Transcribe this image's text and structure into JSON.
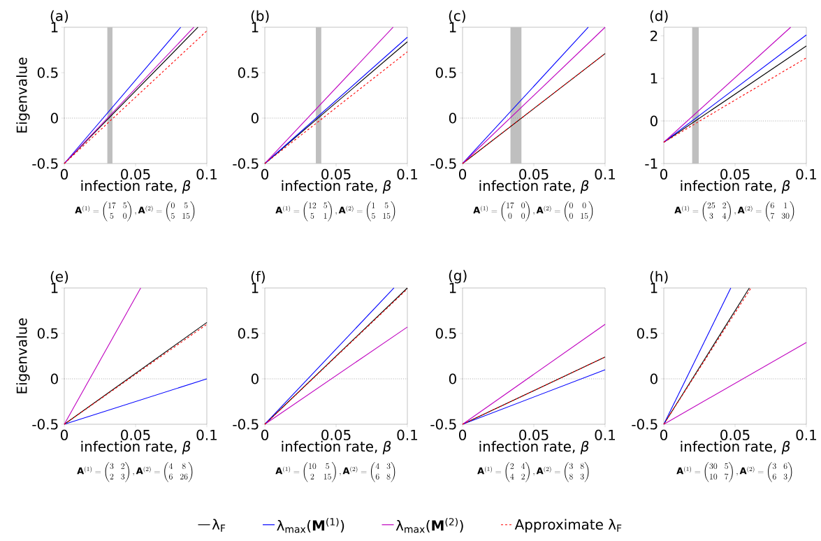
{
  "chart_data": [
    {
      "type": "line",
      "title": "(a)",
      "xlabel": "infection rate, *β*",
      "ylabel": "Eigenvalue",
      "xlim": [
        0,
        0.1
      ],
      "ylim": [
        -0.5,
        1
      ],
      "xticks": [
        0,
        0.05,
        0.1
      ],
      "yticks": [
        -0.5,
        0,
        0.5,
        1
      ],
      "legend": "bottom",
      "series": [
        {
          "name": "λ$_{F}$",
          "color": "#000000",
          "x": [
            0,
            0.0938
          ],
          "values": [
            -0.5,
            1
          ]
        },
        {
          "name": "λ$_{max}$(**M**$^{(1)}$)",
          "color": "#0000ff",
          "x": [
            0,
            0.0817
          ],
          "values": [
            -0.5,
            1
          ]
        },
        {
          "name": "λ$_{max}$(**M**$^{(2)}$)",
          "color": "#bf00bf",
          "x": [
            0,
            0.0909
          ],
          "values": [
            -0.5,
            1
          ]
        },
        {
          "name": "Approximate λ$_{F}$",
          "color": "#ff0000",
          "line_style": "dashed",
          "x": [
            0,
            0.1
          ],
          "values": [
            -0.5,
            0.96
          ]
        }
      ],
      "bands": [
        {
          "axis": "x",
          "from": 0.0302,
          "to": 0.0338,
          "color": "#bfbfbf"
        }
      ],
      "ref_lines": [
        {
          "axis": "y",
          "value": 0,
          "color": "#808080",
          "line_style": "dotted"
        }
      ],
      "annotations": [
        "\\mathbf{A}^{(1)}=\\begin{pmatrix}17 & 5\\\\ 5 & 0\\end{pmatrix}, \\mathbf{A}^{(2)}=\\begin{pmatrix}0 & 5\\\\ 5 & 15\\end{pmatrix}"
      ]
    },
    {
      "type": "line",
      "title": "(b)",
      "xlabel": "infection rate, *β*",
      "xlim": [
        0,
        0.1
      ],
      "ylim": [
        -0.5,
        1
      ],
      "xticks": [
        0,
        0.05,
        0.1
      ],
      "yticks": [
        -0.5,
        0,
        0.5,
        1
      ],
      "series": [
        {
          "color": "#000000",
          "x": [
            0,
            0.1
          ],
          "values": [
            -0.5,
            0.84
          ]
        },
        {
          "color": "#0000ff",
          "x": [
            0,
            0.1
          ],
          "values": [
            -0.5,
            0.89
          ]
        },
        {
          "color": "#bf00bf",
          "x": [
            0,
            0.09
          ],
          "values": [
            -0.5,
            1
          ]
        },
        {
          "color": "#ff0000",
          "line_style": "dashed",
          "x": [
            0,
            0.1
          ],
          "values": [
            -0.5,
            0.73
          ]
        }
      ],
      "bands": [
        {
          "axis": "x",
          "from": 0.0358,
          "to": 0.0396,
          "color": "#bfbfbf"
        }
      ],
      "ref_lines": [
        {
          "axis": "y",
          "value": 0,
          "color": "#808080",
          "line_style": "dotted"
        }
      ],
      "annotations": [
        "\\mathbf{A}^{(1)}=\\begin{pmatrix}12 & 5\\\\ 5 & 1\\end{pmatrix}, \\mathbf{A}^{(2)}=\\begin{pmatrix}1 & 5\\\\ 5 & 15\\end{pmatrix}"
      ]
    },
    {
      "type": "line",
      "title": "(c)",
      "xlabel": "infection rate, *β*",
      "xlim": [
        0,
        0.1
      ],
      "ylim": [
        -0.5,
        1
      ],
      "xticks": [
        0,
        0.05,
        0.1
      ],
      "yticks": [
        -0.5,
        0,
        0.5,
        1
      ],
      "series": [
        {
          "color": "#000000",
          "x": [
            0,
            0.1
          ],
          "values": [
            -0.5,
            0.71
          ]
        },
        {
          "color": "#0000ff",
          "x": [
            0,
            0.0882
          ],
          "values": [
            -0.5,
            1
          ]
        },
        {
          "color": "#bf00bf",
          "x": [
            0,
            0.1
          ],
          "values": [
            -0.5,
            1
          ]
        },
        {
          "color": "#ff0000",
          "line_style": "dashed",
          "x": [
            0,
            0.1
          ],
          "values": [
            -0.5,
            0.71
          ]
        }
      ],
      "bands": [
        {
          "axis": "x",
          "from": 0.0336,
          "to": 0.0413,
          "color": "#bfbfbf"
        }
      ],
      "ref_lines": [
        {
          "axis": "y",
          "value": 0,
          "color": "#808080",
          "line_style": "dotted"
        }
      ],
      "annotations": [
        "\\mathbf{A}^{(1)}=\\begin{pmatrix}17 & 0\\\\ 0 & 0\\end{pmatrix}, \\mathbf{A}^{(2)}=\\begin{pmatrix}0 & 0\\\\ 0 & 15\\end{pmatrix}"
      ]
    },
    {
      "type": "line",
      "title": "(d)",
      "xlabel": "infection rate, *β*",
      "xlim": [
        0,
        0.1
      ],
      "ylim": [
        -1,
        2.2
      ],
      "xticks": [
        0,
        0.05,
        0.1
      ],
      "yticks": [
        -1,
        0,
        1,
        2
      ],
      "series": [
        {
          "color": "#000000",
          "x": [
            0,
            0.1
          ],
          "values": [
            -0.5,
            1.76
          ]
        },
        {
          "color": "#0000ff",
          "x": [
            0,
            0.1
          ],
          "values": [
            -0.5,
            2.02
          ]
        },
        {
          "color": "#bf00bf",
          "x": [
            0,
            0.089
          ],
          "values": [
            -0.5,
            2.2
          ]
        },
        {
          "color": "#ff0000",
          "line_style": "dashed",
          "x": [
            0,
            0.1
          ],
          "values": [
            -0.5,
            1.48
          ]
        }
      ],
      "bands": [
        {
          "axis": "x",
          "from": 0.0199,
          "to": 0.0245,
          "color": "#bfbfbf"
        }
      ],
      "ref_lines": [
        {
          "axis": "y",
          "value": 0,
          "color": "#808080",
          "line_style": "dotted"
        }
      ],
      "annotations": [
        "\\mathbf{A}^{(1)}=\\begin{pmatrix}25 & 2\\\\ 3 & 4\\end{pmatrix}, \\mathbf{A}^{(2)}=\\begin{pmatrix}6 & 1\\\\ 7 & 30\\end{pmatrix}"
      ]
    },
    {
      "type": "line",
      "title": "(e)",
      "xlabel": "infection rate, *β*",
      "ylabel": "Eigenvalue",
      "xlim": [
        0,
        0.1
      ],
      "ylim": [
        -0.5,
        1
      ],
      "xticks": [
        0,
        0.05,
        0.1
      ],
      "yticks": [
        -0.5,
        0,
        0.5,
        1
      ],
      "series": [
        {
          "color": "#000000",
          "x": [
            0,
            0.1
          ],
          "values": [
            -0.5,
            0.62
          ]
        },
        {
          "color": "#0000ff",
          "x": [
            0,
            0.1
          ],
          "values": [
            -0.5,
            0
          ]
        },
        {
          "color": "#bf00bf",
          "x": [
            0,
            0.0536
          ],
          "values": [
            -0.5,
            1
          ]
        },
        {
          "color": "#ff0000",
          "line_style": "dashed",
          "x": [
            0,
            0.1
          ],
          "values": [
            -0.5,
            0.6
          ]
        }
      ],
      "ref_lines": [
        {
          "axis": "y",
          "value": 0,
          "color": "#808080",
          "line_style": "dotted"
        }
      ],
      "annotations": [
        "\\mathbf{A}^{(1)}=\\begin{pmatrix}3 & 2\\\\ 2 & 3\\end{pmatrix}, \\mathbf{A}^{(2)}=\\begin{pmatrix}4 & 8\\\\ 6 & 26\\end{pmatrix}"
      ]
    },
    {
      "type": "line",
      "title": "(f)",
      "xlabel": "infection rate, *β*",
      "xlim": [
        0,
        0.1
      ],
      "ylim": [
        -0.5,
        1
      ],
      "xticks": [
        0,
        0.05,
        0.1
      ],
      "yticks": [
        -0.5,
        0,
        0.5,
        1
      ],
      "series": [
        {
          "color": "#000000",
          "x": [
            0,
            0.1
          ],
          "values": [
            -0.5,
            1
          ]
        },
        {
          "color": "#0000ff",
          "x": [
            0,
            0.0906
          ],
          "values": [
            -0.5,
            1
          ]
        },
        {
          "color": "#bf00bf",
          "x": [
            0,
            0.1
          ],
          "values": [
            -0.5,
            0.57
          ]
        },
        {
          "color": "#ff0000",
          "line_style": "dashed",
          "x": [
            0,
            0.1
          ],
          "values": [
            -0.5,
            0.99
          ]
        }
      ],
      "ref_lines": [
        {
          "axis": "y",
          "value": 0,
          "color": "#808080",
          "line_style": "dotted"
        }
      ],
      "annotations": [
        "\\mathbf{A}^{(1)}=\\begin{pmatrix}10 & 5\\\\ 2 & 15\\end{pmatrix}, \\mathbf{A}^{(2)}=\\begin{pmatrix}4 & 3\\\\ 6 & 8\\end{pmatrix}"
      ]
    },
    {
      "type": "line",
      "title": "(g)",
      "xlabel": "infection rate, *β*",
      "xlim": [
        0,
        0.1
      ],
      "ylim": [
        -0.5,
        1
      ],
      "xticks": [
        0,
        0.05,
        0.1
      ],
      "yticks": [
        -0.5,
        0,
        0.5,
        1
      ],
      "series": [
        {
          "color": "#000000",
          "x": [
            0,
            0.1
          ],
          "values": [
            -0.5,
            0.24
          ]
        },
        {
          "color": "#0000ff",
          "x": [
            0,
            0.1
          ],
          "values": [
            -0.5,
            0.1
          ]
        },
        {
          "color": "#bf00bf",
          "x": [
            0,
            0.1
          ],
          "values": [
            -0.5,
            0.6
          ]
        },
        {
          "color": "#ff0000",
          "line_style": "dashed",
          "x": [
            0,
            0.1
          ],
          "values": [
            -0.5,
            0.24
          ]
        }
      ],
      "ref_lines": [
        {
          "axis": "y",
          "value": 0,
          "color": "#808080",
          "line_style": "dotted"
        }
      ],
      "annotations": [
        "\\mathbf{A}^{(1)}=\\begin{pmatrix}2 & 4\\\\ 4 & 2\\end{pmatrix}, \\mathbf{A}^{(2)}=\\begin{pmatrix}3 & 8\\\\ 8 & 3\\end{pmatrix}"
      ]
    },
    {
      "type": "line",
      "title": "(h)",
      "xlabel": "infection rate, *β*",
      "xlim": [
        0,
        0.1
      ],
      "ylim": [
        -0.5,
        1
      ],
      "xticks": [
        0,
        0.05,
        0.1
      ],
      "yticks": [
        -0.5,
        0,
        0.5,
        1
      ],
      "series": [
        {
          "color": "#000000",
          "x": [
            0,
            0.06
          ],
          "values": [
            -0.5,
            1
          ]
        },
        {
          "color": "#0000ff",
          "x": [
            0,
            0.047
          ],
          "values": [
            -0.5,
            1
          ]
        },
        {
          "color": "#bf00bf",
          "x": [
            0,
            0.1
          ],
          "values": [
            -0.5,
            0.4
          ]
        },
        {
          "color": "#ff0000",
          "line_style": "dashed",
          "x": [
            0,
            0.0612
          ],
          "values": [
            -0.5,
            1
          ]
        }
      ],
      "ref_lines": [
        {
          "axis": "y",
          "value": 0,
          "color": "#808080",
          "line_style": "dotted"
        }
      ],
      "annotations": [
        "\\mathbf{A}^{(1)}=\\begin{pmatrix}30 & 5\\\\ 10 & 7\\end{pmatrix}, \\mathbf{A}^{(2)}=\\begin{pmatrix}3 & 6\\\\ 6 & 3\\end{pmatrix}"
      ]
    }
  ]
}
